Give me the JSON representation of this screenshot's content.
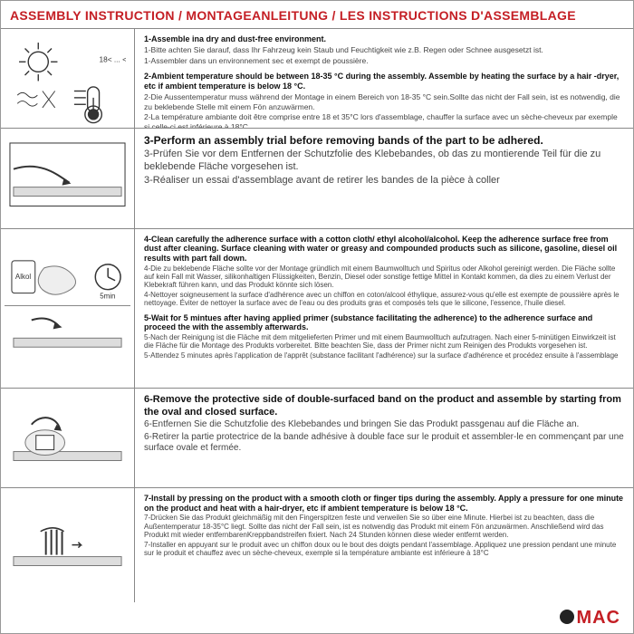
{
  "title": "ASSEMBLY INSTRUCTION / MONTAGEANLEITUNG / LES INSTRUCTIONS D'ASSEMBLAGE",
  "colors": {
    "accent": "#c41e24",
    "text": "#444444",
    "bold": "#111111",
    "border": "#888888",
    "bg": "#ffffff"
  },
  "fonts": {
    "family": "Arial",
    "title_size": 14,
    "body_size": 8.5,
    "bold_size": 9
  },
  "footer": {
    "brand": "MAC",
    "dot_color": "#222222",
    "brand_color": "#c41e24"
  },
  "rows": [
    {
      "img": "sun-temp",
      "blocks": [
        {
          "bold": "1-Assemble ina dry and dust-free environment.",
          "lines": [
            "1-Bitte achten Sie darauf, dass Ihr Fahrzeug kein Staub und Feuchtigkeit wie z.B. Regen oder Schnee ausgesetzt ist.",
            "1-Assembler dans un environnement sec et exempt de poussière."
          ]
        },
        {
          "bold": "2-Ambient temperature should be between 18-35 °C  during the assembly. Assemble by heating the surface by a hair -dryer, etc if ambient temperature is below 18 °C.",
          "lines": [
            "2-Die Aussentemperatur muss während der Montage in einem Bereich von 18-35 °C sein.Sollte das nicht der Fall sein, ist es notwendig, die zu beklebende Stelle mit einem Fön anzuwärmen.",
            "2-La température ambiante doit être comprise entre 18 et 35°C lors d'assemblage, chauffer la surface avec un sèche-cheveux par exemple si celle-ci est inférieure à 18°C."
          ]
        }
      ]
    },
    {
      "img": "trial-bar",
      "blocks": [
        {
          "bold": "3-Perform an assembly trial before removing bands of the part to be adhered.",
          "lines": [
            "3-Prüfen Sie vor dem Entfernen der Schutzfolie des Klebebandes, ob das zu montierende Teil für die zu beklebende Fläche vorgesehen ist.",
            "3-Réaliser un essai d'assemblage avant de retirer les bandes de la pièce à coller"
          ],
          "bold_size": 12
        }
      ]
    },
    {
      "img": "clean-cloth",
      "blocks": [
        {
          "bold": "4-Clean carefully the adherence surface with a cotton cloth/ ethyl alcohol/alcohol. Keep the adherence surface free from dust after cleaning. Surface cleaning with water or greasy and compounded products such as silicone, gasoline, diesel oil results with part fall down.",
          "lines": [
            "4-Die zu beklebende Fläche sollte vor der Montage gründlich mit einem Baumwolltuch und Spiritus oder Alkohol gereinigt werden. Die Fläche sollte auf kein Fall mit Wasser, silikonhaltigen Flüssigkeiten, Benzin, Diesel oder sonstige fettige Mittel in Kontakt kommen, da dies zu einem Verlust der Klebekraft führen kann, und das Produkt könnte sich lösen.",
            "4-Nettoyer soigneusement la surface d'adhérence avec un chiffon en coton/alcool éthylique, assurez-vous qu'elle est exempte de poussière après le nettoyage. Éviter de nettoyer la surface avec de l'eau ou des produits gras et composés tels que le silicone, l'essence, l'huile diesel."
          ]
        },
        {
          "bold": "5-Wait for 5 mintues after having applied primer (substance facilitating the adherence) to the adherence surface and proceed the with the assembly afterwards.",
          "lines": [
            "5-Nach der Reinigung ist die Fläche mit dem mitgelieferten Primer und mit einem Baumwolltuch aufzutragen. Nach einer 5-minütigen Einwirkzeit ist die Fläche für die Montage des Produkts vorbereitet. Bitte beachten Sie, dass der Primer nicht zum Reinigen des Produkts vorgesehen ist.",
            "5-Attendez 5 minutes après l'application de l'apprêt (substance facilitant l'adhérence) sur la surface d'adhérence et procédez ensuite à l'assemblage"
          ]
        }
      ]
    },
    {
      "img": "peel-tape",
      "blocks": [
        {
          "bold": "6-Remove the protective side of double-surfaced band on the product and assemble by starting from the oval and closed surface.",
          "lines": [
            "6-Entfernen Sie die Schutzfolie des Klebebandes und bringen Sie das Produkt passgenau auf die Fläche an.",
            "6-Retirer la partie protectrice de la bande adhésive à double face sur le produit et assembler-le en commençant par une surface ovale et fermée."
          ],
          "bold_size": 11
        }
      ]
    },
    {
      "img": "press-bar",
      "blocks": [
        {
          "bold": "7-Install by pressing on the product with a smooth cloth or finger tips during the assembly. Apply a pressure for one minute on the product and heat with a hair-dryer, etc if ambient temperature is below 18 °C.",
          "lines": [
            "7-Drücken Sie das Produkt gleichmäßig mit den Fingerspitzen feste und verweilen Sie so über eine Minute. Hierbei ist zu beachten, dass die Außentemperatur 18-35°C liegt. Sollte das nicht der Fall sein, ist es notwendig das Produkt mit einem Fön anzuwärmen. Anschließend wird das Produkt mit wieder entfernbarenKreppbandstreifen fixiert. Nach 24 Stunden können diese wieder entfernt werden.",
            "7-Installer en appuyant sur le produit avec un chiffon doux ou le bout des doigts pendant l'assemblage. Appliquez une pression pendant une minute sur le produit et chauffez avec un sèche-cheveux, exemple si la température ambiante est inférieure à 18°C"
          ]
        }
      ]
    }
  ]
}
